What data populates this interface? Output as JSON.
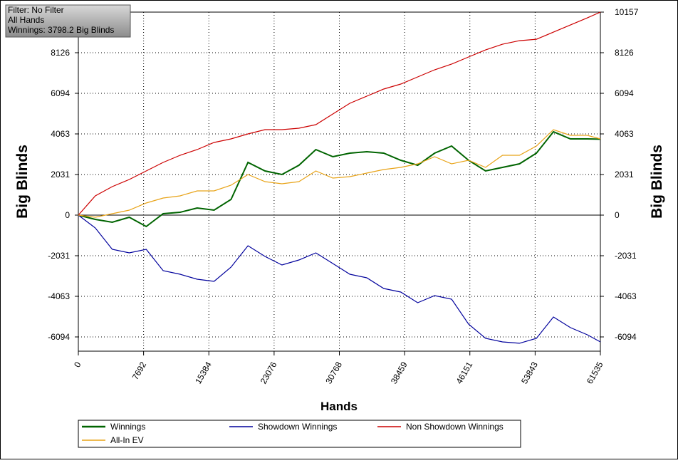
{
  "chart_data": {
    "type": "line",
    "info": [
      "Filter: No Filter",
      "All Hands",
      "Winnings: 3798.2 Big Blinds"
    ],
    "x_label": "Hands",
    "y_label": "Big Blinds",
    "y2_label": "Big Blinds",
    "x": [
      0,
      2000,
      4000,
      6000,
      8000,
      10000,
      12000,
      14000,
      16000,
      18000,
      20000,
      22000,
      24000,
      26000,
      28000,
      30000,
      32000,
      34000,
      36000,
      38000,
      40000,
      42000,
      44000,
      46000,
      48000,
      50000,
      52000,
      54000,
      56000,
      58000,
      60000,
      61535
    ],
    "series": [
      {
        "name": "Winnings",
        "color": "#006400",
        "values": [
          0,
          -214,
          -356,
          -107,
          -570,
          71,
          142,
          356,
          249,
          784,
          2637,
          2209,
          2031,
          2494,
          3278,
          2922,
          3100,
          3171,
          3100,
          2744,
          2494,
          3100,
          3456,
          2744,
          2209,
          2387,
          2565,
          3100,
          4169,
          3812,
          3812,
          3798
        ]
      },
      {
        "name": "Showdown Winnings",
        "color": "#00009c",
        "values": [
          0,
          -641,
          -1710,
          -1888,
          -1710,
          -2779,
          -2957,
          -3207,
          -3314,
          -2601,
          -1532,
          -2066,
          -2494,
          -2245,
          -1888,
          -2423,
          -2957,
          -3135,
          -3670,
          -3848,
          -4382,
          -4026,
          -4204,
          -5451,
          -6164,
          -6342,
          -6413,
          -6164,
          -5095,
          -5629,
          -5986,
          -6342
        ]
      },
      {
        "name": "Non Showdown Winnings",
        "color": "#cc0000",
        "values": [
          0,
          962,
          1425,
          1782,
          2209,
          2637,
          2993,
          3278,
          3634,
          3812,
          4062,
          4275,
          4275,
          4347,
          4525,
          5060,
          5594,
          5950,
          6307,
          6556,
          6913,
          7269,
          7554,
          7910,
          8266,
          8551,
          8729,
          8800,
          9157,
          9513,
          9869,
          10157
        ]
      },
      {
        "name": "All-In EV",
        "color": "#e8a317",
        "values": [
          0,
          -107,
          71,
          249,
          606,
          855,
          962,
          1211,
          1211,
          1496,
          2031,
          1675,
          1568,
          1675,
          2209,
          1853,
          1924,
          2102,
          2280,
          2387,
          2565,
          2922,
          2565,
          2744,
          2387,
          2993,
          2993,
          3456,
          4275,
          3991,
          3991,
          3812
        ]
      }
    ],
    "xlim": [
      0,
      61535
    ],
    "xticks": [
      0,
      7692,
      15384,
      23076,
      30768,
      38459,
      46151,
      53843,
      61535
    ],
    "ylim": [
      -6807,
      10157
    ],
    "yticks": [
      -6094,
      -4063,
      -2031,
      0,
      2031,
      4063,
      6094,
      8126,
      10157
    ],
    "y2lim": [
      -6807,
      10157
    ],
    "y2ticks": [
      -6094,
      -4063,
      -2031,
      0,
      2031,
      4063,
      6094,
      8126,
      10157
    ],
    "grid": true
  }
}
